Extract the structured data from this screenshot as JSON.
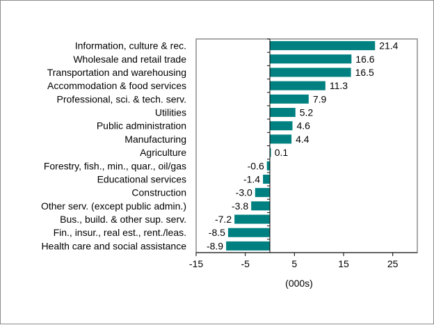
{
  "chart_data": {
    "type": "bar",
    "orientation": "horizontal",
    "categories": [
      "Information, culture & rec.",
      "Wholesale and retail trade",
      "Transportation and warehousing",
      "Accommodation & food services",
      "Professional, sci. & tech. serv.",
      "Utilities",
      "Public administration",
      "Manufacturing",
      "Agriculture",
      "Forestry, fish., min., quar., oil/gas",
      "Educational services",
      "Construction",
      "Other serv. (except public admin.)",
      "Bus., build. & other sup. serv.",
      "Fin., insur., real est., rent./leas.",
      "Health care and social assistance"
    ],
    "values": [
      21.4,
      16.6,
      16.5,
      11.3,
      7.9,
      5.2,
      4.6,
      4.4,
      0.1,
      -0.6,
      -1.4,
      -3.0,
      -3.8,
      -7.2,
      -8.5,
      -8.9
    ],
    "value_labels": [
      "21.4",
      "16.6",
      "16.5",
      "11.3",
      "7.9",
      "5.2",
      "4.6",
      "4.4",
      "0.1",
      "-0.6",
      "-1.4",
      "-3.0",
      "-3.8",
      "-7.2",
      "-8.5",
      "-8.9"
    ],
    "title": "",
    "xlabel": "(000s)",
    "ylabel": "",
    "xlim": [
      -15,
      30
    ],
    "xticks": [
      -15,
      -5,
      5,
      15,
      25
    ],
    "xtick_labels": [
      "-15",
      "-5",
      "5",
      "15",
      "25"
    ],
    "grid": false,
    "legend": "none",
    "bar_color": "#008080"
  }
}
